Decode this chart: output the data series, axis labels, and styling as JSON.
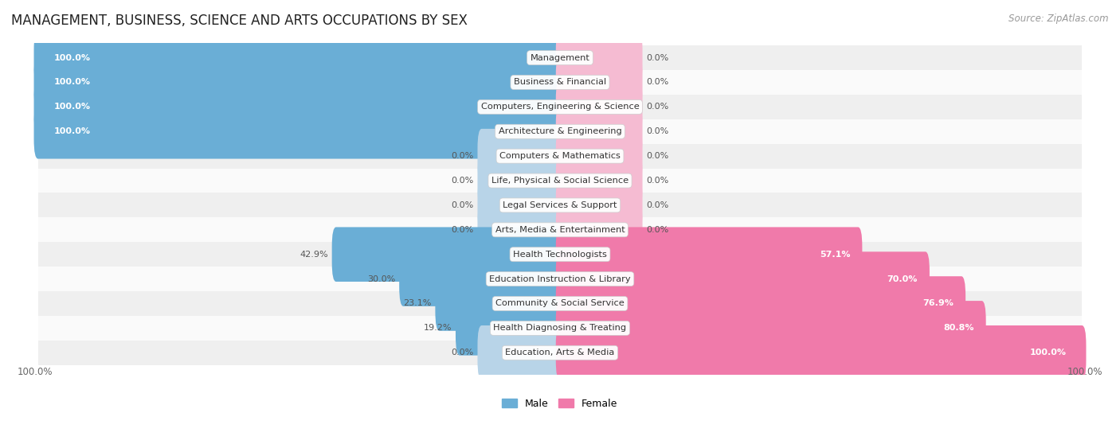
{
  "title": "MANAGEMENT, BUSINESS, SCIENCE AND ARTS OCCUPATIONS BY SEX",
  "source": "Source: ZipAtlas.com",
  "categories": [
    "Management",
    "Business & Financial",
    "Computers, Engineering & Science",
    "Architecture & Engineering",
    "Computers & Mathematics",
    "Life, Physical & Social Science",
    "Legal Services & Support",
    "Arts, Media & Entertainment",
    "Health Technologists",
    "Education Instruction & Library",
    "Community & Social Service",
    "Health Diagnosing & Treating",
    "Education, Arts & Media"
  ],
  "male_pct": [
    100.0,
    100.0,
    100.0,
    100.0,
    0.0,
    0.0,
    0.0,
    0.0,
    42.9,
    30.0,
    23.1,
    19.2,
    0.0
  ],
  "female_pct": [
    0.0,
    0.0,
    0.0,
    0.0,
    0.0,
    0.0,
    0.0,
    0.0,
    57.1,
    70.0,
    76.9,
    80.8,
    100.0
  ],
  "male_color_strong": "#6aaed6",
  "male_color_weak": "#b8d4e8",
  "female_color_strong": "#f07aaa",
  "female_color_weak": "#f5bbd2",
  "row_bg_odd": "#efefef",
  "row_bg_even": "#fafafa",
  "title_fontsize": 12,
  "source_fontsize": 8.5,
  "bar_label_fontsize": 8.0,
  "cat_label_fontsize": 8.2
}
